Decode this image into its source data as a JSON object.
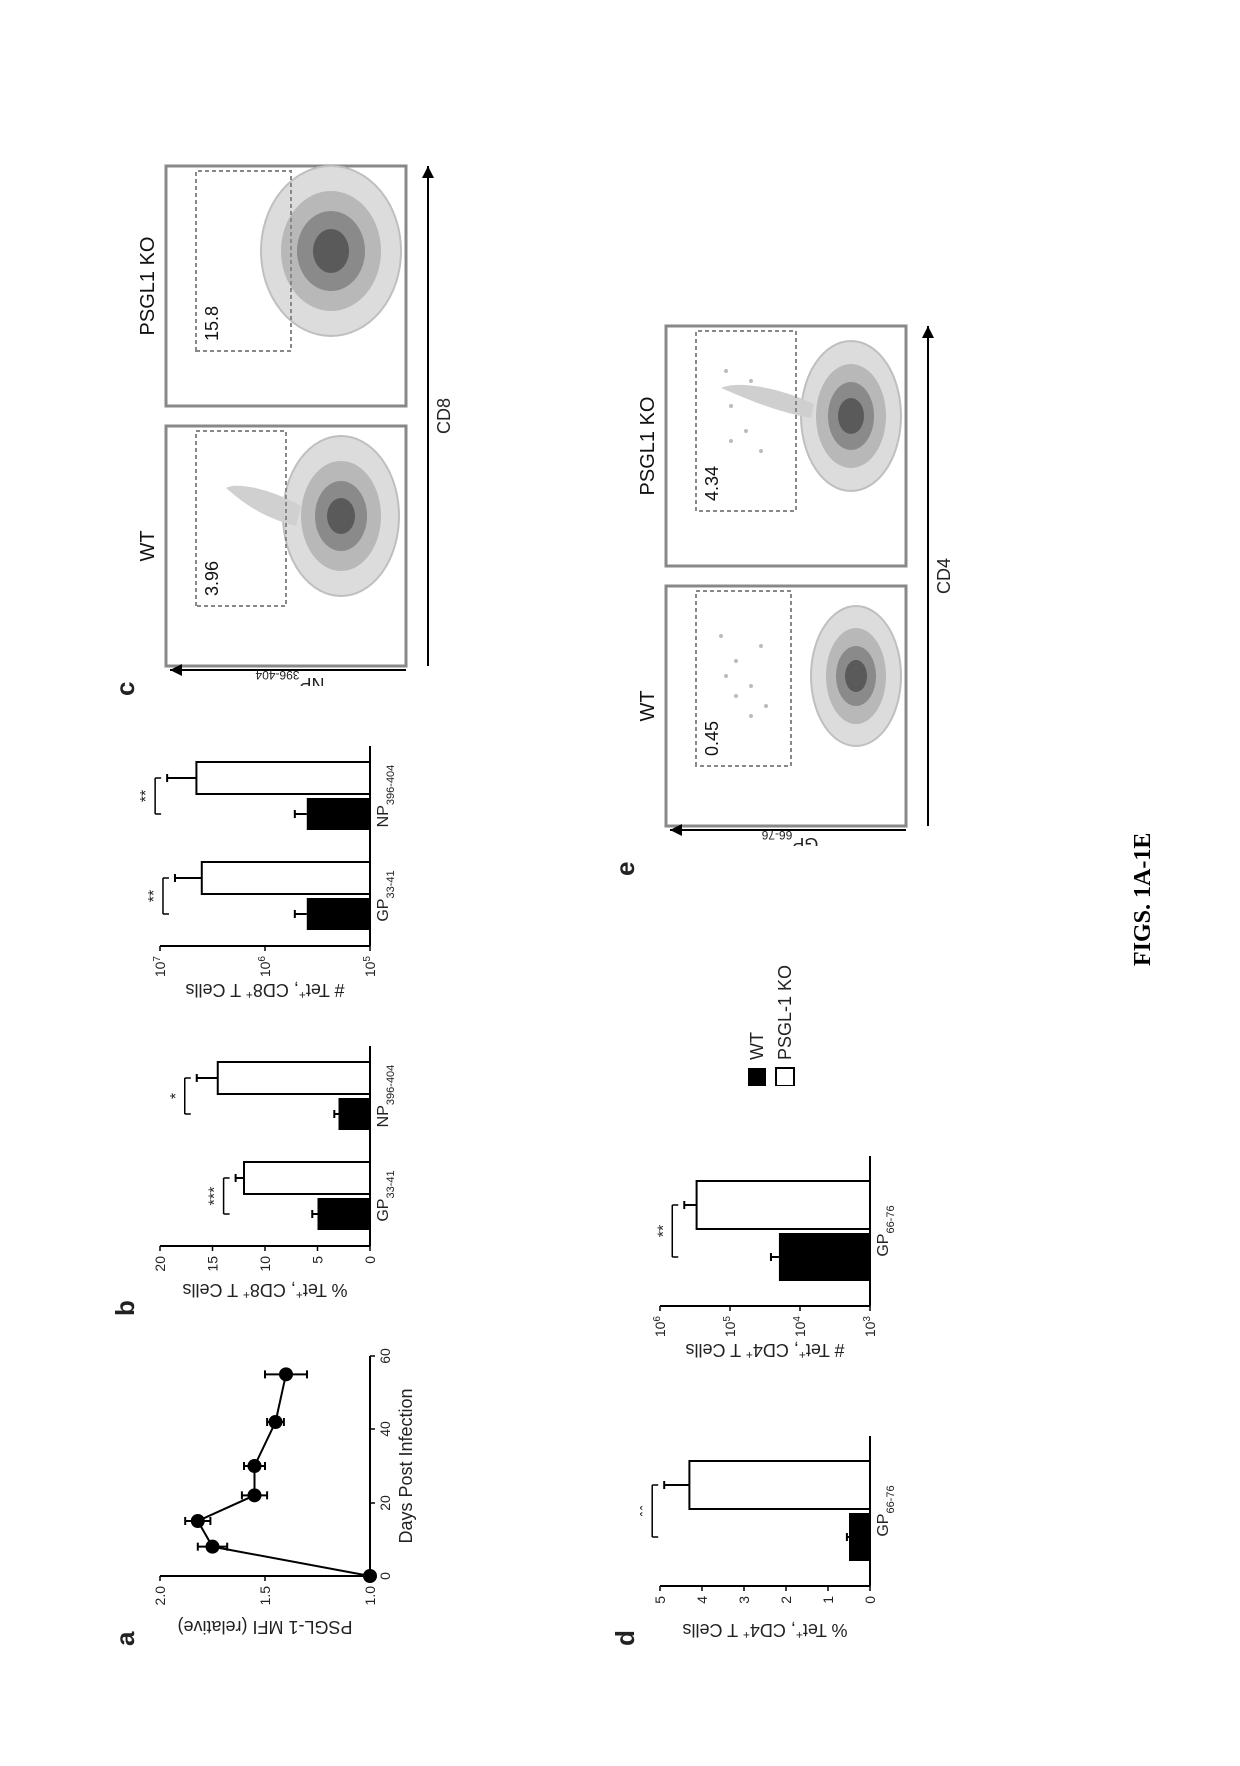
{
  "figure_caption": "FIGS. 1A-1E",
  "panel_a": {
    "label": "a",
    "type": "line",
    "yaxis_label": "PSGL-1 MFI (relative)",
    "xaxis_label": "Days Post Infection",
    "xlim": [
      0,
      60
    ],
    "x_ticks": [
      0,
      20,
      40,
      60
    ],
    "ylim": [
      1.0,
      2.0
    ],
    "y_ticks": [
      1.0,
      1.5,
      2.0
    ],
    "tick_fontsize": 14,
    "label_fontsize": 18,
    "marker_color": "#000000",
    "line_color": "#000000",
    "marker_size": 7,
    "line_width": 2,
    "points": [
      {
        "x": 0,
        "y": 1.0,
        "err": 0.0
      },
      {
        "x": 8,
        "y": 1.75,
        "err": 0.07
      },
      {
        "x": 15,
        "y": 1.82,
        "err": 0.06
      },
      {
        "x": 22,
        "y": 1.55,
        "err": 0.06
      },
      {
        "x": 30,
        "y": 1.55,
        "err": 0.05
      },
      {
        "x": 42,
        "y": 1.45,
        "err": 0.04
      },
      {
        "x": 55,
        "y": 1.4,
        "err": 0.1
      }
    ]
  },
  "panel_b": {
    "label": "b",
    "left": {
      "type": "bar",
      "yaxis_label": "% Tet+, CD8+ T Cells",
      "ylim": [
        0,
        20
      ],
      "y_ticks": [
        0,
        5,
        10,
        15,
        20
      ],
      "categories": [
        "GP33-41",
        "NP396-404"
      ],
      "groups": [
        {
          "name": "WT",
          "fill": "#000000",
          "values": [
            5.0,
            3.0
          ],
          "err": [
            0.5,
            0.4
          ]
        },
        {
          "name": "PSGL-1 KO",
          "fill": "#ffffff",
          "values": [
            12.0,
            14.5
          ],
          "err": [
            0.8,
            2.0
          ]
        }
      ],
      "significance": [
        "***",
        "*"
      ]
    },
    "right": {
      "type": "bar-log",
      "yaxis_label": "# Tet+, CD8+ T Cells",
      "ylim": [
        100000.0,
        10000000.0
      ],
      "y_ticks_exp": [
        5,
        6,
        7
      ],
      "categories": [
        "GP33-41",
        "NP396-404"
      ],
      "groups": [
        {
          "name": "WT",
          "fill": "#000000",
          "values": [
            400000.0,
            400000.0
          ],
          "err_factor": [
            1.3,
            1.3
          ]
        },
        {
          "name": "PSGL-1 KO",
          "fill": "#ffffff",
          "values": [
            4000000.0,
            4500000.0
          ],
          "err_factor": [
            1.8,
            1.9
          ]
        }
      ],
      "significance": [
        "**",
        "**"
      ]
    }
  },
  "panel_c": {
    "label": "c",
    "type": "facs",
    "columns": [
      "WT",
      "PSGL1 KO"
    ],
    "yaxis_label": "NP396-404",
    "xaxis_label": "CD8",
    "plots": [
      {
        "title": "WT",
        "gate_value": "3.96"
      },
      {
        "title": "PSGL1 KO",
        "gate_value": "15.8"
      }
    ]
  },
  "panel_d": {
    "label": "d",
    "left": {
      "type": "bar",
      "yaxis_label": "% Tet+, CD4+ T Cells",
      "ylim": [
        0,
        5
      ],
      "y_ticks": [
        0,
        1,
        2,
        3,
        4,
        5
      ],
      "categories": [
        "GP66-76"
      ],
      "groups": [
        {
          "name": "WT",
          "fill": "#000000",
          "values": [
            0.5
          ],
          "err": [
            0.05
          ]
        },
        {
          "name": "PSGL-1 KO",
          "fill": "#ffffff",
          "values": [
            4.3
          ],
          "err": [
            0.6
          ]
        }
      ],
      "significance": [
        "**"
      ]
    },
    "right": {
      "type": "bar-log",
      "yaxis_label": "# Tet+, CD4+ T Cells",
      "ylim": [
        1000.0,
        1000000.0
      ],
      "y_ticks_exp": [
        3,
        4,
        5,
        6
      ],
      "categories": [
        "GP66-76"
      ],
      "groups": [
        {
          "name": "WT",
          "fill": "#000000",
          "values": [
            20000.0
          ],
          "err_factor": [
            1.3
          ]
        },
        {
          "name": "PSGL-1 KO",
          "fill": "#ffffff",
          "values": [
            300000.0
          ],
          "err_factor": [
            1.5
          ]
        }
      ],
      "significance": [
        "**"
      ]
    }
  },
  "panel_e": {
    "label": "e",
    "type": "facs",
    "columns": [
      "WT",
      "PSGL1 KO"
    ],
    "yaxis_label": "GP66-76",
    "xaxis_label": "CD4",
    "plots": [
      {
        "title": "WT",
        "gate_value": "0.45"
      },
      {
        "title": "PSGL1 KO",
        "gate_value": "4.34"
      }
    ]
  },
  "legend": {
    "items": [
      {
        "name": "WT",
        "fill": "#000000",
        "label": "WT"
      },
      {
        "name": "PSGL-1 KO",
        "fill": "#ffffff",
        "label": "PSGL-1 KO"
      }
    ]
  },
  "colors": {
    "background": "#ffffff",
    "axis": "#000000",
    "text": "#000000",
    "facs_border": "#888888"
  },
  "typography": {
    "panel_label_fontsize": 26,
    "axis_label_fontsize": 18,
    "tick_fontsize": 14,
    "caption_fontsize": 24,
    "caption_family": "Times New Roman"
  }
}
